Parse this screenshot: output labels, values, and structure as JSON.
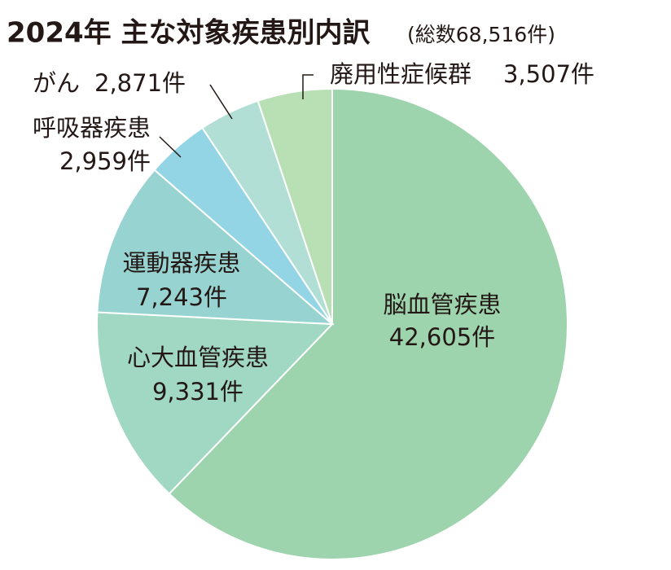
{
  "chart_data": {
    "type": "pie",
    "title": "2024年 主な対象疾患別内訳",
    "subtitle": "(総数68,516件)",
    "categories": [
      "脳血管疾患",
      "心大血管疾患",
      "運動器疾患",
      "呼吸器疾患",
      "がん",
      "廃用性症候群"
    ],
    "values": [
      42605,
      9331,
      7243,
      2959,
      2871,
      3507
    ],
    "value_labels": [
      "42,605件",
      "9,331件",
      "7,243件",
      "2,959件",
      "2,871件",
      "3,507件"
    ],
    "colors": [
      "#9dd3ad",
      "#a0d8c3",
      "#97d3d0",
      "#93d5e4",
      "#b1ded5",
      "#b9e0b5"
    ]
  }
}
